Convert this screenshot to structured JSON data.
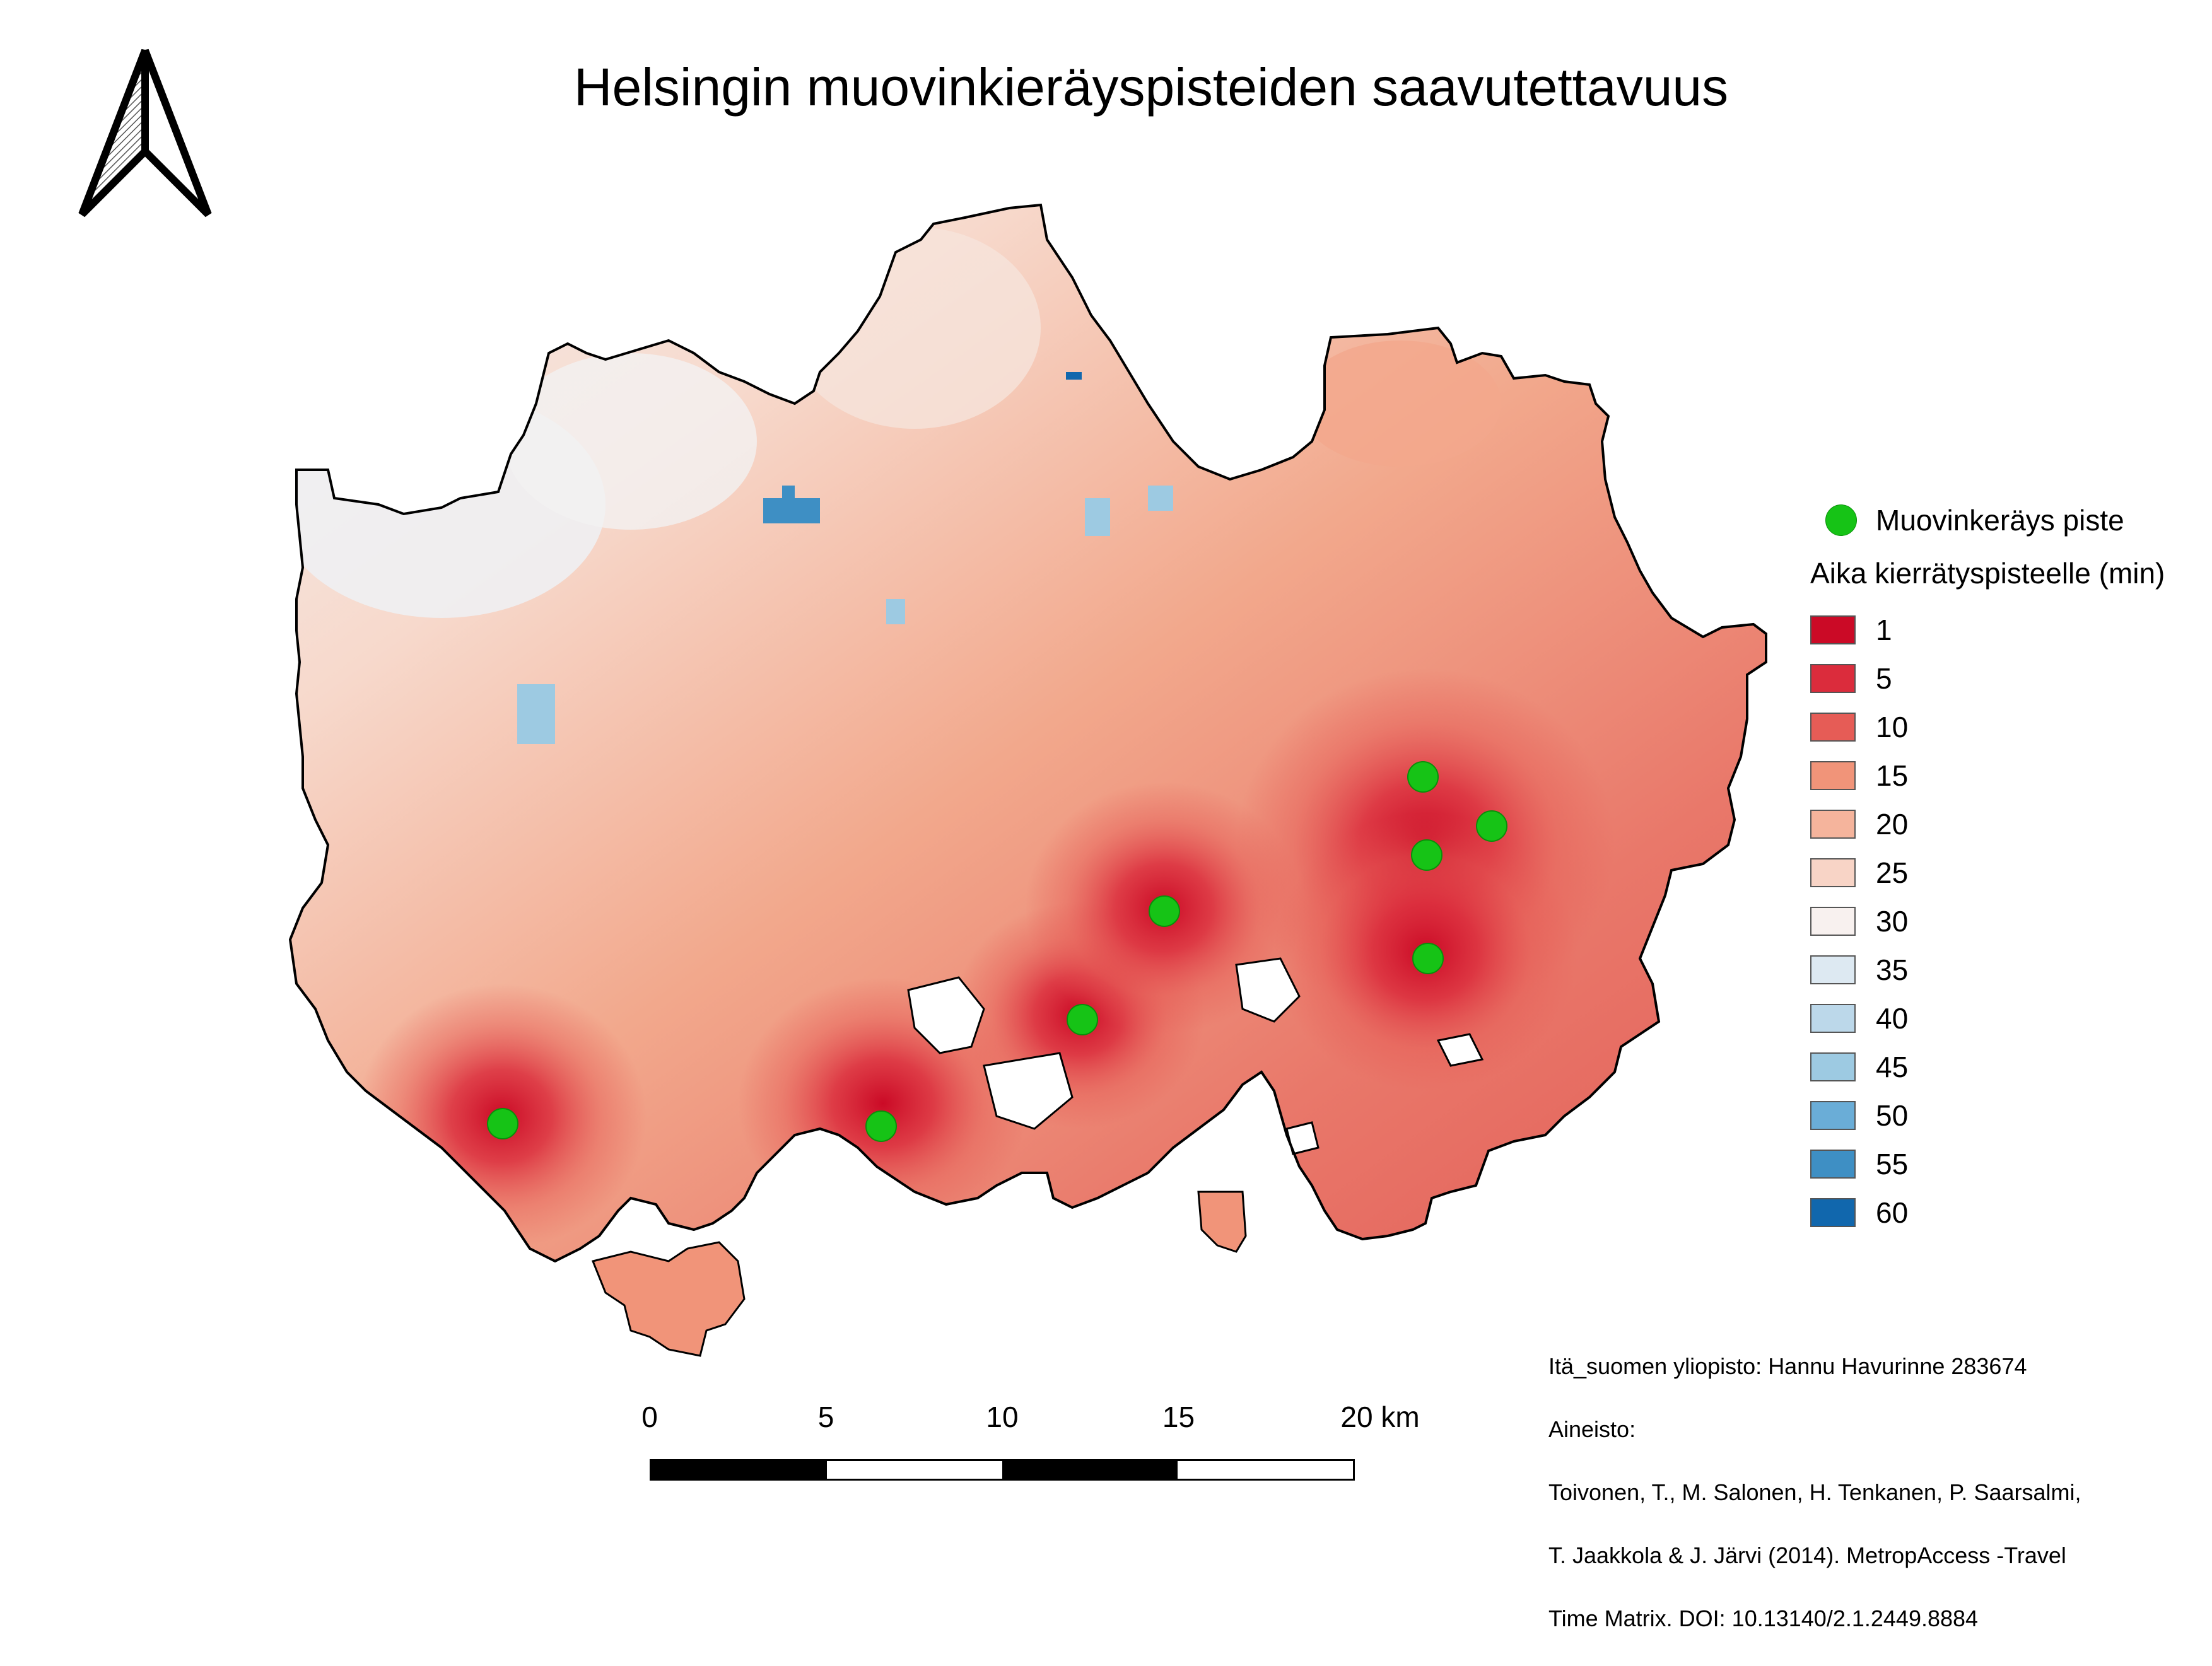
{
  "title": "Helsingin muovinkieräyspisteiden saavutettavuus",
  "legend": {
    "point_label": "Muovinkeräys piste",
    "point_color": "#16c316",
    "title": "Aika kierrätyspisteelle (min)",
    "classes": [
      {
        "label": "1",
        "color": "#cb0a26"
      },
      {
        "label": "5",
        "color": "#db2c3c"
      },
      {
        "label": "10",
        "color": "#e65c56"
      },
      {
        "label": "15",
        "color": "#f19479"
      },
      {
        "label": "20",
        "color": "#f5b49c"
      },
      {
        "label": "25",
        "color": "#f8d4c6"
      },
      {
        "label": "30",
        "color": "#f8f1ef"
      },
      {
        "label": "35",
        "color": "#dde9f2"
      },
      {
        "label": "40",
        "color": "#bcd8ea"
      },
      {
        "label": "45",
        "color": "#9dcae2"
      },
      {
        "label": "50",
        "color": "#6aadd7"
      },
      {
        "label": "55",
        "color": "#3e8fc4"
      },
      {
        "label": "60",
        "color": "#1167ad"
      }
    ]
  },
  "scale_bar": {
    "labels": [
      "0",
      "5",
      "10",
      "15",
      "20 km"
    ]
  },
  "credits": {
    "line1": "Itä_suomen yliopisto: Hannu Havurinne 283674",
    "line2": "Aineisto:",
    "line3": "Toivonen, T., M. Salonen, H. Tenkanen, P. Saarsalmi,",
    "line4": "T. Jaakkola & J. Järvi (2014). MetropAccess -Travel",
    "line5": "Time Matrix. DOI: 10.13140/2.1.2449.8884"
  },
  "colors": {
    "outline": "#000000",
    "collection_point": "#16c316"
  },
  "icons": {
    "north_arrow": "north-arrow-icon"
  }
}
